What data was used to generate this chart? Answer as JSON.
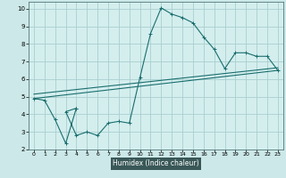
{
  "xlabel": "Humidex (Indice chaleur)",
  "bg_color": "#cce8e8",
  "plot_bg_color": "#d4eeee",
  "grid_color": "#aacece",
  "line_color": "#1a6e6e",
  "axis_label_bg": "#3a5a5a",
  "xlim": [
    -0.5,
    23.5
  ],
  "ylim": [
    2,
    10.4
  ],
  "xticks": [
    0,
    1,
    2,
    3,
    4,
    5,
    6,
    7,
    8,
    9,
    10,
    11,
    12,
    13,
    14,
    15,
    16,
    17,
    18,
    19,
    20,
    21,
    22,
    23
  ],
  "yticks": [
    2,
    3,
    4,
    5,
    6,
    7,
    8,
    9,
    10
  ],
  "series1_x": [
    0,
    1,
    2,
    3,
    4,
    4,
    3,
    4,
    5,
    6,
    7,
    8,
    9,
    10,
    11,
    12,
    13,
    14,
    15,
    16,
    17,
    18,
    19,
    20,
    21,
    22,
    23
  ],
  "series1_y": [
    4.9,
    4.8,
    3.7,
    2.35,
    4.35,
    4.35,
    4.15,
    2.8,
    3.0,
    2.8,
    3.5,
    3.6,
    3.5,
    6.1,
    8.6,
    10.05,
    9.7,
    9.5,
    9.2,
    8.4,
    7.7,
    6.6,
    7.5,
    7.5,
    7.3,
    7.3,
    6.5
  ],
  "series2_x": [
    0,
    23
  ],
  "series2_y": [
    4.9,
    6.5
  ],
  "series3_x": [
    0,
    23
  ],
  "series3_y": [
    5.15,
    6.65
  ]
}
